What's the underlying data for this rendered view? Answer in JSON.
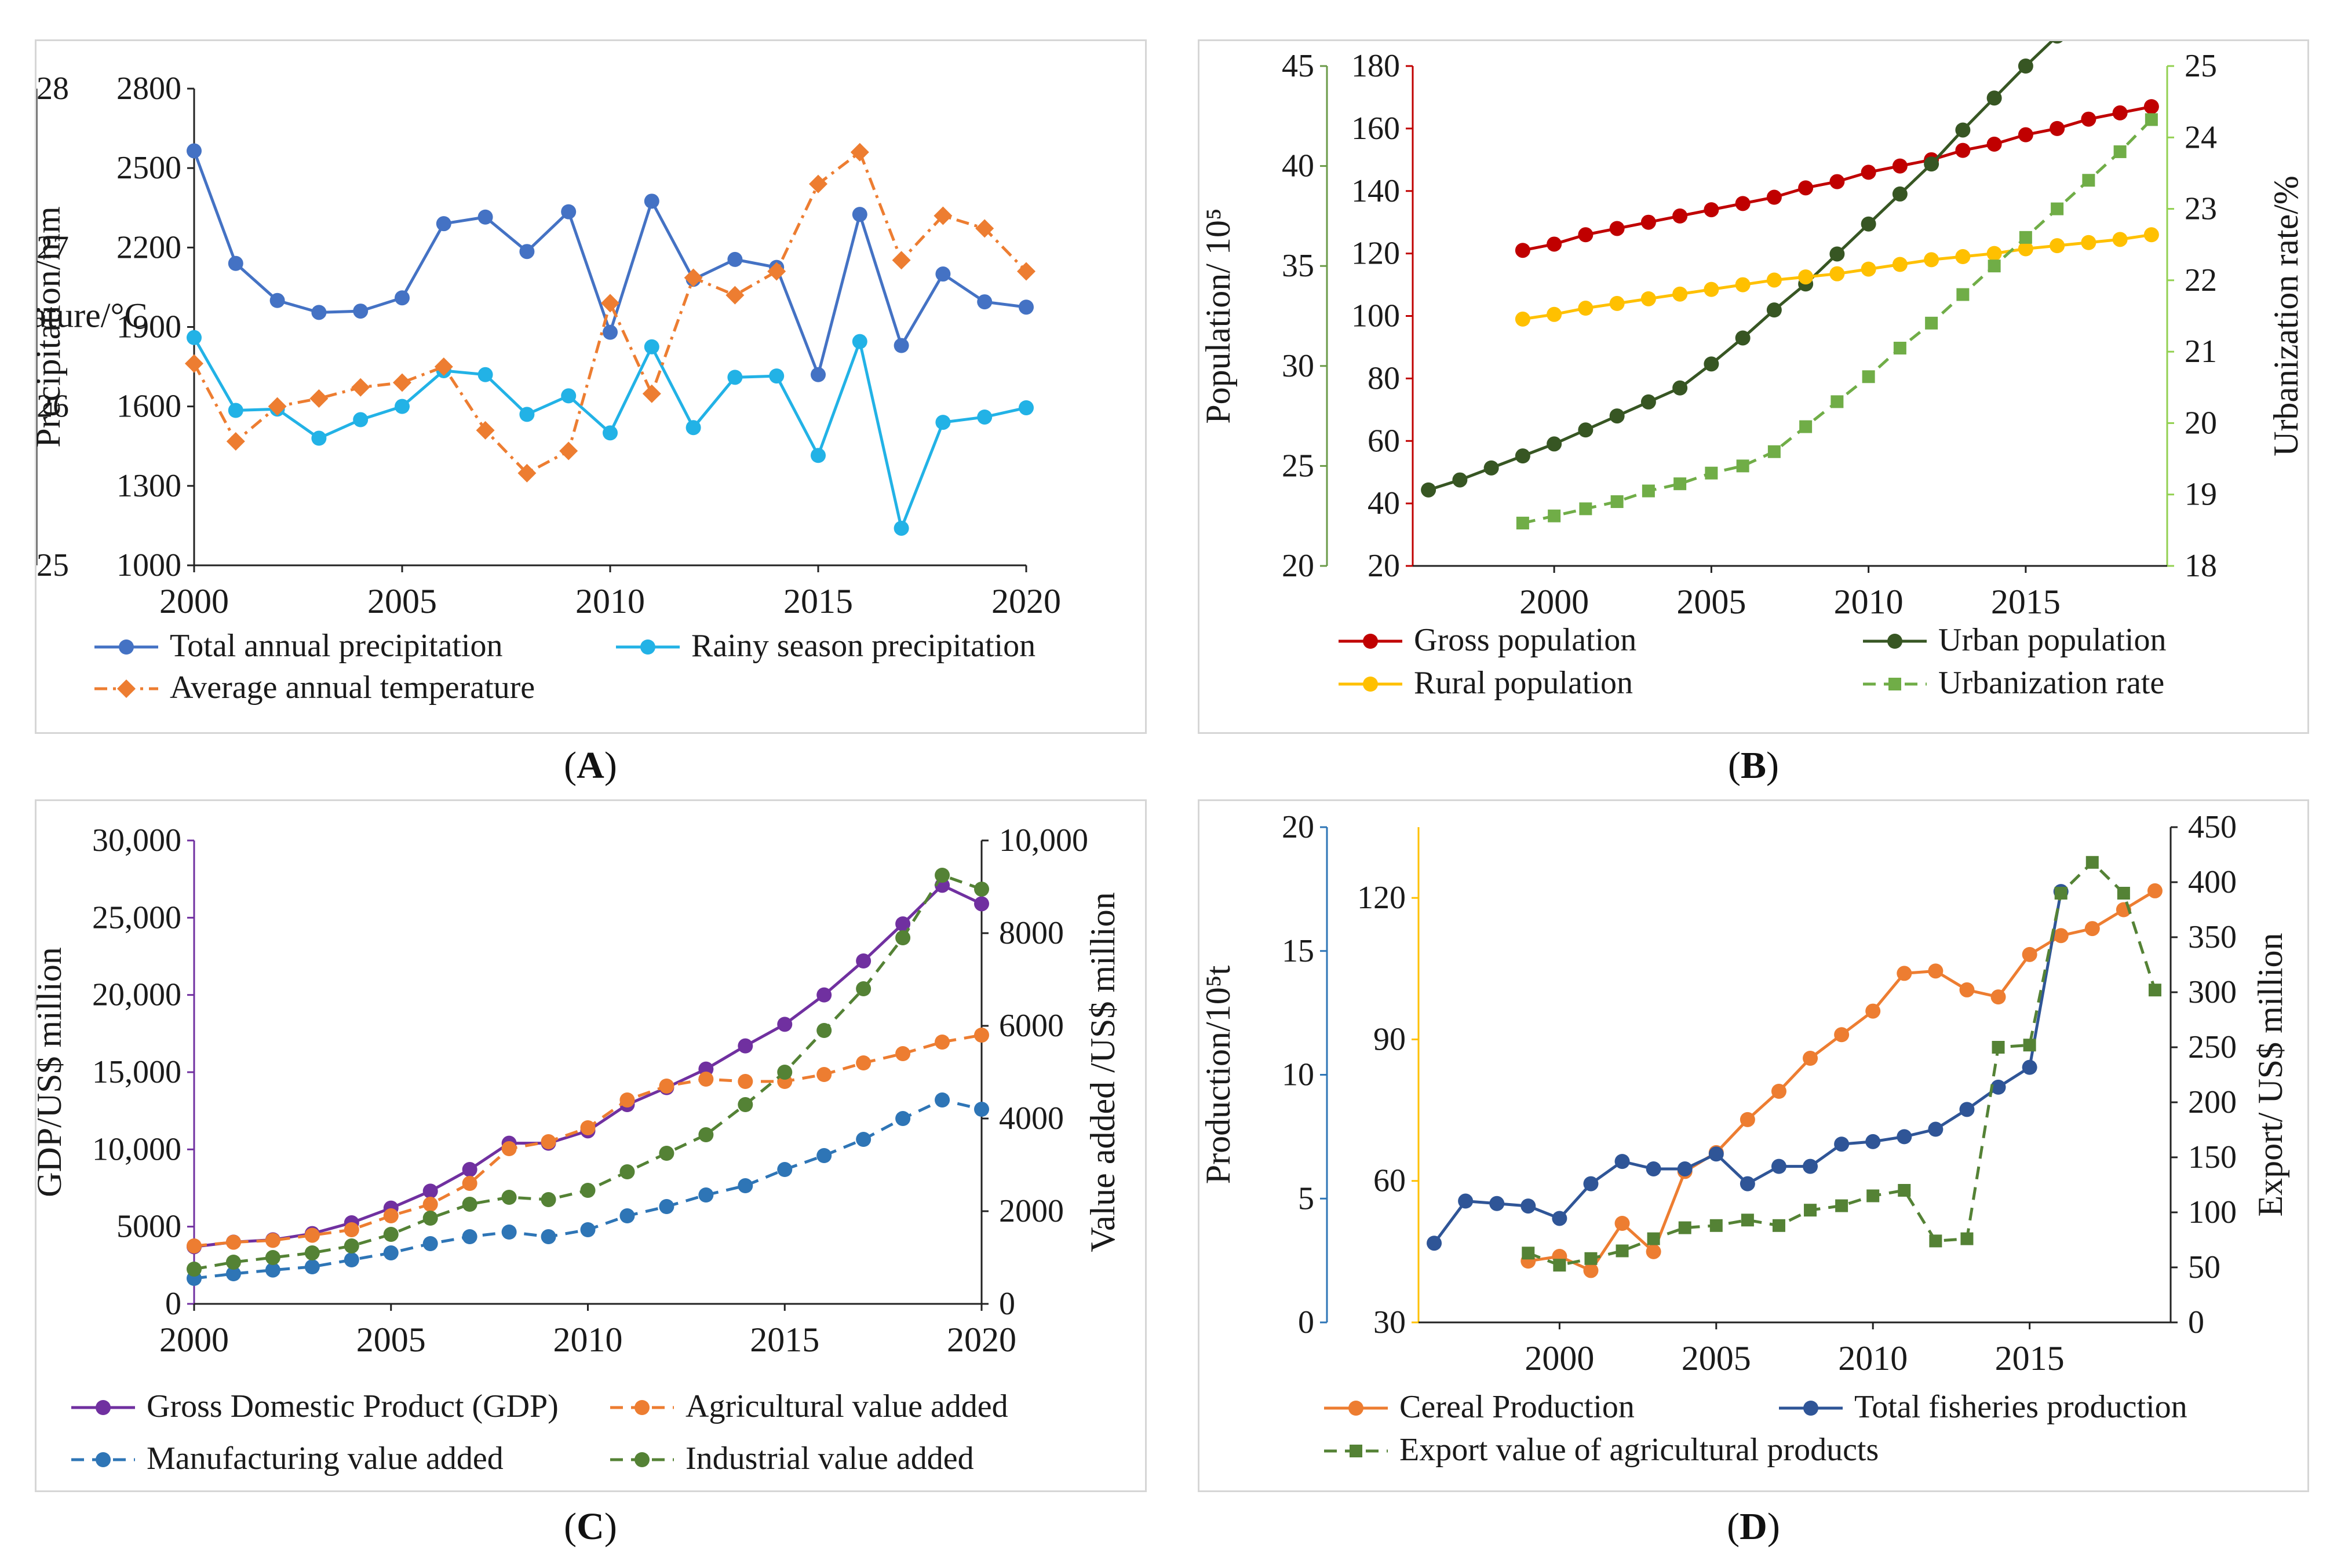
{
  "panels": [
    {
      "id": "A",
      "panel_label": "A",
      "chart_data": {
        "type": "line",
        "x": [
          2000,
          2001,
          2002,
          2003,
          2004,
          2005,
          2006,
          2007,
          2008,
          2009,
          2010,
          2011,
          2012,
          2013,
          2014,
          2015,
          2016,
          2017,
          2018,
          2019,
          2020
        ],
        "xlim": [
          2000,
          2020
        ],
        "xticks": [
          2000,
          2005,
          2010,
          2015,
          2020
        ],
        "axes": [
          {
            "side": "left",
            "label": "Precipitation/mm",
            "lim": [
              1000,
              2800
            ],
            "ticks": [
              1000,
              1300,
              1600,
              1900,
              2200,
              2500,
              2800
            ],
            "color": "#222222"
          },
          {
            "side": "right",
            "label": "Temperature/°C",
            "lim": [
              25,
              28
            ],
            "ticks": [
              25,
              26,
              27,
              28
            ],
            "color": "#222222"
          }
        ],
        "series": [
          {
            "name": "Total annual precipitation",
            "axis": 0,
            "color": "#4472c4",
            "dash": "solid",
            "marker": "circle",
            "values": [
              2565,
              2140,
              2000,
              1955,
              1960,
              2010,
              2290,
              2315,
              2185,
              2335,
              1880,
              2375,
              2080,
              2155,
              2125,
              1720,
              2325,
              1830,
              2100,
              1995,
              1975
            ]
          },
          {
            "name": "Rainy season precipitation",
            "axis": 0,
            "color": "#22b2e6",
            "dash": "solid",
            "marker": "circle",
            "values": [
              1860,
              1585,
              1590,
              1480,
              1550,
              1600,
              1735,
              1720,
              1570,
              1640,
              1500,
              1825,
              1520,
              1710,
              1715,
              1415,
              1845,
              1140,
              1540,
              1560,
              1595
            ]
          },
          {
            "name": "Average annual temperature",
            "axis": 1,
            "color": "#ed7d31",
            "dash": "dashdot",
            "marker": "diamond",
            "values": [
              26.27,
              25.78,
              26.0,
              26.05,
              26.12,
              26.15,
              26.25,
              25.85,
              25.58,
              25.72,
              26.65,
              26.08,
              26.81,
              26.7,
              26.85,
              27.4,
              27.6,
              26.92,
              27.2,
              27.12,
              26.85
            ]
          }
        ],
        "legend_layout": [
          [
            0,
            1
          ],
          [
            2
          ]
        ]
      }
    },
    {
      "id": "B",
      "panel_label": "B",
      "chart_data": {
        "type": "line",
        "x": [
          1996,
          1997,
          1998,
          1999,
          2000,
          2001,
          2002,
          2003,
          2004,
          2005,
          2006,
          2007,
          2008,
          2009,
          2010,
          2011,
          2012,
          2013,
          2014,
          2015,
          2016,
          2017,
          2018,
          2019
        ],
        "xlim": [
          1995.5,
          2019.5
        ],
        "xticks": [
          2000,
          2005,
          2010,
          2015
        ],
        "axes": [
          {
            "side": "left",
            "label": "Population/ 10⁵",
            "lim": [
              20,
              45
            ],
            "ticks": [
              20,
              25,
              30,
              35,
              40,
              45
            ],
            "color": "#6a9a48",
            "outer": true
          },
          {
            "side": "left",
            "label": "",
            "lim": [
              20,
              180
            ],
            "ticks": [
              20,
              40,
              60,
              80,
              100,
              120,
              140,
              160,
              180
            ],
            "color": "#c00000"
          },
          {
            "side": "right",
            "label": "Urbanization rate/%",
            "lim": [
              18,
              25
            ],
            "ticks": [
              18,
              19,
              20,
              21,
              22,
              23,
              24,
              25
            ],
            "color": "#92d050"
          }
        ],
        "series": [
          {
            "name": "Gross population",
            "axis": 1,
            "color": "#c00000",
            "dash": "solid",
            "marker": "circle",
            "x": [
              1999,
              2000,
              2001,
              2002,
              2003,
              2004,
              2005,
              2006,
              2007,
              2008,
              2009,
              2010,
              2011,
              2012,
              2013,
              2014,
              2015,
              2016,
              2017,
              2018,
              2019
            ],
            "values": [
              121,
              123,
              126,
              128,
              130,
              132,
              134,
              136,
              138,
              141,
              143,
              146,
              148,
              150,
              153,
              155,
              158,
              160,
              163,
              165,
              167
            ]
          },
          {
            "name": "Urban population",
            "axis": 0,
            "color": "#375623",
            "dash": "solid",
            "marker": "circle",
            "x": [
              1996,
              1997,
              1998,
              1999,
              2000,
              2001,
              2002,
              2003,
              2004,
              2005,
              2006,
              2007,
              2008,
              2009,
              2010,
              2011,
              2012,
              2013,
              2014,
              2015,
              2016
            ],
            "values": [
              23.8,
              24.3,
              24.9,
              25.5,
              26.1,
              26.8,
              27.5,
              28.2,
              28.9,
              30.1,
              31.4,
              32.8,
              34.1,
              35.6,
              37.1,
              38.6,
              40.1,
              41.8,
              43.4,
              45.0,
              46.5
            ]
          },
          {
            "name": "Rural population",
            "axis": 1,
            "color": "#ffc000",
            "dash": "solid",
            "marker": "circle",
            "x": [
              1999,
              2000,
              2001,
              2002,
              2003,
              2004,
              2005,
              2006,
              2007,
              2008,
              2009,
              2010,
              2011,
              2012,
              2013,
              2014,
              2015,
              2016,
              2017,
              2018,
              2019
            ],
            "values": [
              99,
              100.5,
              102.5,
              104,
              105.5,
              107,
              108.5,
              110,
              111.5,
              112.5,
              113.5,
              115,
              116.5,
              118,
              119,
              120,
              121.5,
              122.5,
              123.5,
              124.5,
              126
            ]
          },
          {
            "name": "Urbanization rate",
            "axis": 2,
            "color": "#70ad47",
            "dash": "dashed",
            "marker": "square",
            "x": [
              1999,
              2000,
              2001,
              2002,
              2003,
              2004,
              2005,
              2006,
              2007,
              2008,
              2009,
              2010,
              2011,
              2012,
              2013,
              2014,
              2015,
              2016,
              2017,
              2018,
              2019
            ],
            "values": [
              18.6,
              18.7,
              18.8,
              18.9,
              19.05,
              19.15,
              19.3,
              19.4,
              19.6,
              19.95,
              20.3,
              20.65,
              21.05,
              21.4,
              21.8,
              22.2,
              22.6,
              23.0,
              23.4,
              23.8,
              24.25
            ]
          }
        ],
        "legend_layout": [
          [
            0,
            1
          ],
          [
            2,
            3
          ]
        ]
      }
    },
    {
      "id": "C",
      "panel_label": "C",
      "chart_data": {
        "type": "line",
        "x": [
          2000,
          2001,
          2002,
          2003,
          2004,
          2005,
          2006,
          2007,
          2008,
          2009,
          2010,
          2011,
          2012,
          2013,
          2014,
          2015,
          2016,
          2017,
          2018,
          2019,
          2020
        ],
        "xlim": [
          2000,
          2020
        ],
        "xticks": [
          2000,
          2005,
          2010,
          2015,
          2020
        ],
        "axes": [
          {
            "side": "left",
            "label": "GDP/US$ million",
            "lim": [
              0,
              30000
            ],
            "ticks": [
              0,
              5000,
              10000,
              15000,
              20000,
              25000,
              30000
            ],
            "tick_labels": [
              "0",
              "5000",
              "10,000",
              "15,000",
              "20,000",
              "25,000",
              "30,000"
            ],
            "color": "#7030a0"
          },
          {
            "side": "right",
            "label": "Value added /US$ million",
            "lim": [
              0,
              10000
            ],
            "ticks": [
              0,
              2000,
              4000,
              6000,
              8000,
              10000
            ],
            "tick_labels": [
              "0",
              "2000",
              "4000",
              "6000",
              "8000",
              "10,000"
            ],
            "color": "#222222"
          }
        ],
        "series": [
          {
            "name": "Gross Domestic Product (GDP)",
            "axis": 0,
            "color": "#7030a0",
            "dash": "solid",
            "marker": "circle",
            "values": [
              3700,
              4000,
              4150,
              4550,
              5250,
              6200,
              7300,
              8700,
              10400,
              10400,
              11200,
              12900,
              14000,
              15200,
              16700,
              18100,
              20000,
              22200,
              24600,
              27100,
              25900
            ]
          },
          {
            "name": "Agricultural value added",
            "axis": 1,
            "color": "#ed7d31",
            "dash": "dashed",
            "marker": "circle",
            "values": [
              1250,
              1330,
              1370,
              1480,
              1600,
              1900,
              2150,
              2600,
              3350,
              3500,
              3800,
              4400,
              4700,
              4850,
              4800,
              4800,
              4950,
              5200,
              5400,
              5650,
              5800
            ]
          },
          {
            "name": "Manufacturing value added",
            "axis": 1,
            "color": "#2e75b6",
            "dash": "dashed",
            "marker": "circle",
            "values": [
              550,
              650,
              730,
              800,
              950,
              1100,
              1300,
              1450,
              1550,
              1450,
              1600,
              1900,
              2100,
              2350,
              2550,
              2900,
              3200,
              3550,
              4000,
              4400,
              4200
            ]
          },
          {
            "name": "Industrial value added",
            "axis": 1,
            "color": "#548235",
            "dash": "dashed",
            "marker": "circle",
            "values": [
              750,
              900,
              1000,
              1100,
              1250,
              1500,
              1850,
              2150,
              2300,
              2250,
              2450,
              2850,
              3250,
              3650,
              4300,
              5000,
              5900,
              6800,
              7900,
              9250,
              8950
            ]
          }
        ],
        "legend_layout": [
          [
            0,
            1
          ],
          [
            2,
            3
          ]
        ]
      }
    },
    {
      "id": "D",
      "panel_label": "D",
      "chart_data": {
        "type": "line",
        "x": [
          1996,
          1997,
          1998,
          1999,
          2000,
          2001,
          2002,
          2003,
          2004,
          2005,
          2006,
          2007,
          2008,
          2009,
          2010,
          2011,
          2012,
          2013,
          2014,
          2015,
          2016,
          2017,
          2018,
          2019
        ],
        "xlim": [
          1995.5,
          2019.5
        ],
        "xticks": [
          2000,
          2005,
          2010,
          2015
        ],
        "axes": [
          {
            "side": "left",
            "label": "Production/10⁵t",
            "lim": [
              0,
              20
            ],
            "ticks": [
              0,
              5,
              10,
              15,
              20
            ],
            "color": "#2e75b6",
            "outer": true
          },
          {
            "side": "left",
            "label": "",
            "lim": [
              30,
              135
            ],
            "ticks": [
              30,
              60,
              90,
              120
            ],
            "color": "#ffc000"
          },
          {
            "side": "right",
            "label": "Export/ US$ million",
            "lim": [
              0,
              450
            ],
            "ticks": [
              0,
              50,
              100,
              150,
              200,
              250,
              300,
              350,
              400,
              450
            ],
            "color": "#222222"
          }
        ],
        "series": [
          {
            "name": "Cereal Production",
            "axis": 1,
            "color": "#ed7d31",
            "dash": "solid",
            "marker": "circle",
            "x": [
              1999,
              2000,
              2001,
              2002,
              2003,
              2004,
              2005,
              2006,
              2007,
              2008,
              2009,
              2010,
              2011,
              2012,
              2013,
              2014,
              2015,
              2016,
              2017,
              2018,
              2019
            ],
            "values": [
              43,
              44,
              41,
              51,
              45,
              62,
              66,
              73,
              79,
              86,
              91,
              96,
              104,
              104.5,
              100.5,
              99,
              108,
              112,
              113.5,
              117.5,
              121.5
            ]
          },
          {
            "name": "Total fisheries production",
            "axis": 0,
            "color": "#2f5597",
            "dash": "solid",
            "marker": "circle",
            "x": [
              1996,
              1997,
              1998,
              1999,
              2000,
              2001,
              2002,
              2003,
              2004,
              2005,
              2006,
              2007,
              2008,
              2009,
              2010,
              2011,
              2012,
              2013,
              2014,
              2015,
              2016
            ],
            "values": [
              3.2,
              4.9,
              4.8,
              4.7,
              4.2,
              5.6,
              6.5,
              6.2,
              6.2,
              6.8,
              5.6,
              6.3,
              6.3,
              7.2,
              7.3,
              7.5,
              7.8,
              8.6,
              9.5,
              10.3,
              17.4
            ]
          },
          {
            "name": "Export value of agricultural products",
            "axis": 2,
            "color": "#548235",
            "dash": "dashed",
            "marker": "square",
            "x": [
              1999,
              2000,
              2001,
              2002,
              2003,
              2004,
              2005,
              2006,
              2007,
              2008,
              2009,
              2010,
              2011,
              2012,
              2013,
              2014,
              2015,
              2016,
              2017,
              2018,
              2019
            ],
            "values": [
              63,
              52,
              58,
              65,
              76,
              86,
              88,
              93,
              88,
              102,
              106,
              115,
              120,
              74,
              76,
              250,
              252,
              390,
              418,
              390,
              302
            ]
          }
        ],
        "legend_layout": [
          [
            0,
            1
          ],
          [
            2
          ]
        ]
      }
    }
  ]
}
